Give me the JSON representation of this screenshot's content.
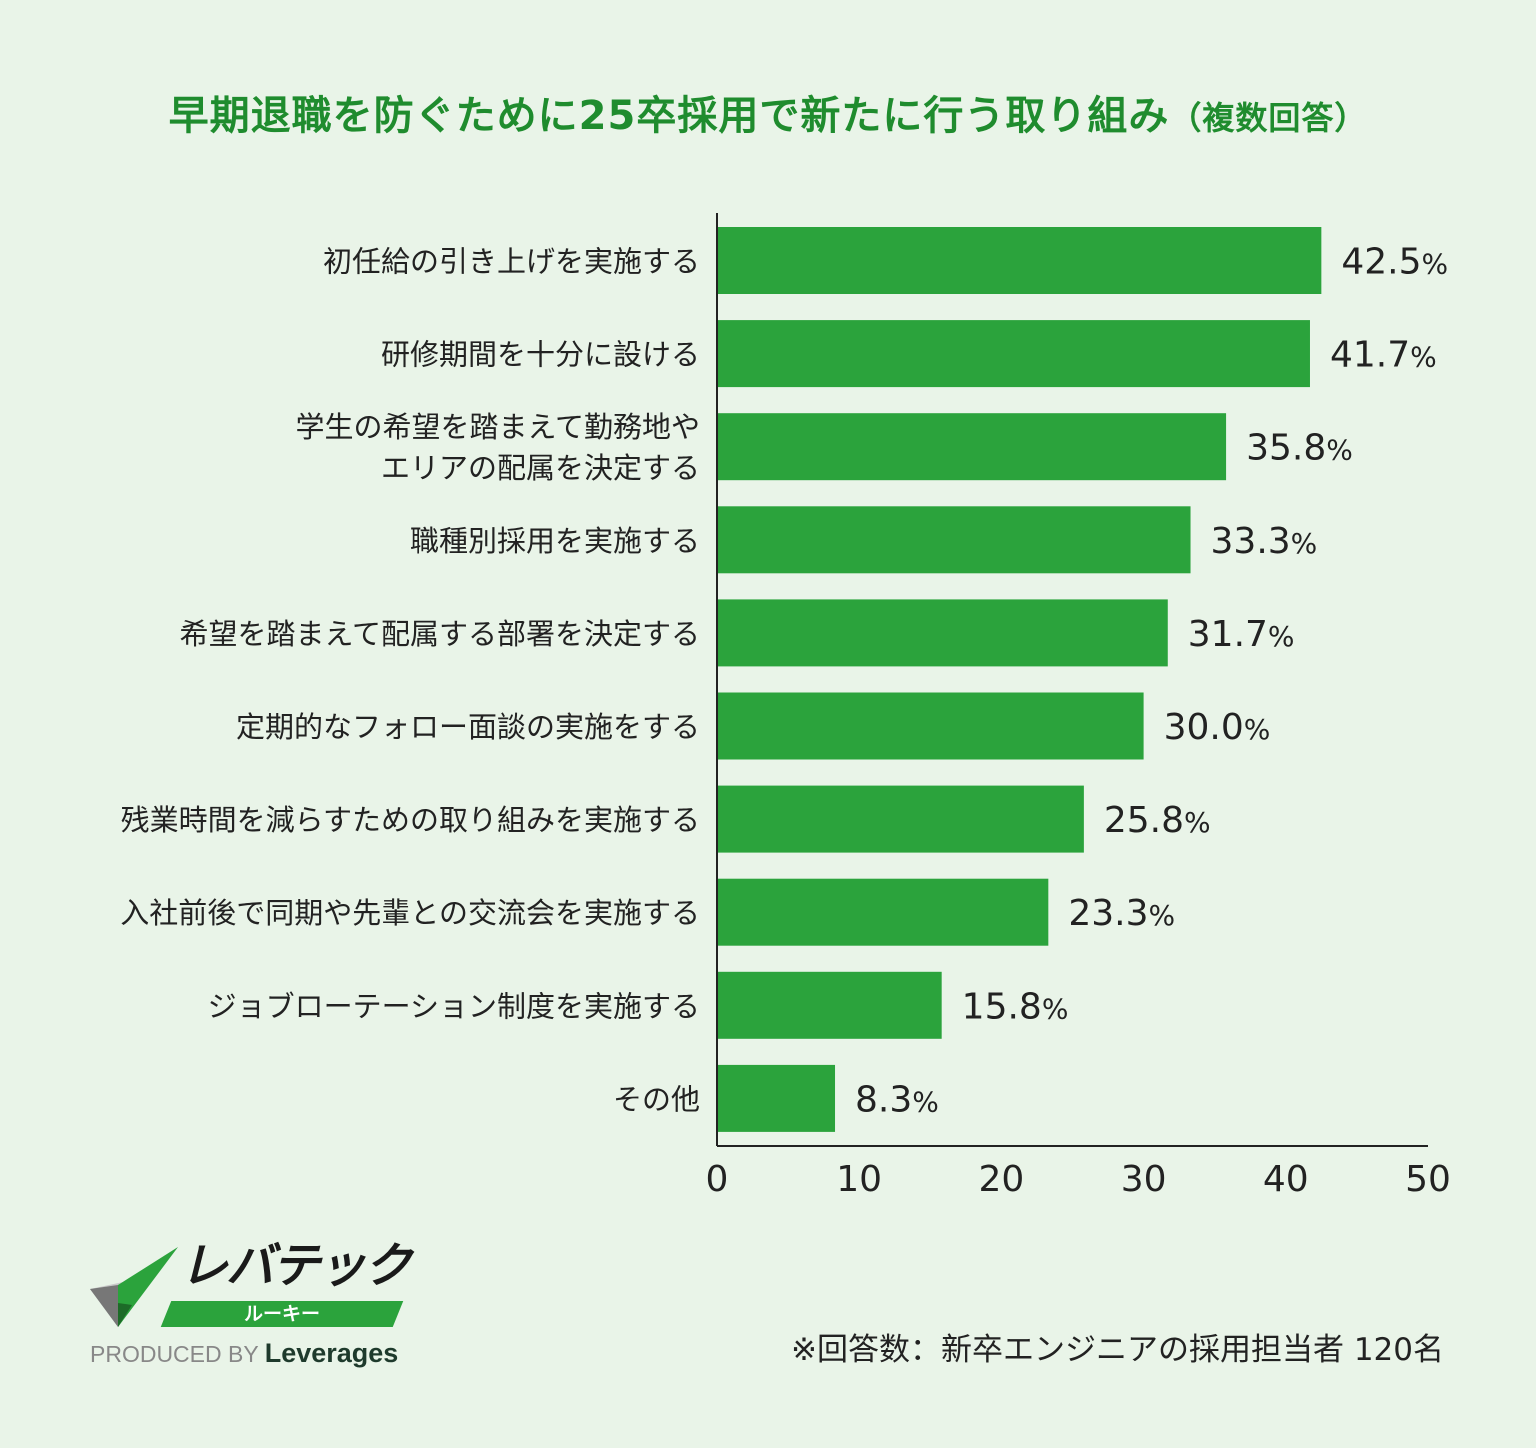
{
  "chart_data": {
    "type": "bar",
    "orientation": "horizontal",
    "title": "早期退職を防ぐために25卒採用で新たに行う取り組み",
    "subtitle": "（複数回答）",
    "categories": [
      "初任給の引き上げを実施する",
      "研修期間を十分に設ける",
      "学生の希望を踏まえて勤務地や\nエリアの配属を決定する",
      "職種別採用を実施する",
      "希望を踏まえて配属する部署を決定する",
      "定期的なフォロー面談の実施をする",
      "残業時間を減らすための取り組みを実施する",
      "入社前後で同期や先輩との交流会を実施する",
      "ジョブローテーション制度を実施する",
      "その他"
    ],
    "values": [
      42.5,
      41.7,
      35.8,
      33.3,
      31.7,
      30.0,
      25.8,
      23.3,
      15.8,
      8.3
    ],
    "value_suffix": "%",
    "xlim": [
      0,
      50
    ],
    "xticks": [
      0,
      10,
      20,
      30,
      40,
      50
    ],
    "xlabel": "",
    "ylabel": "",
    "grid": false,
    "bar_color": "#2ba33c",
    "title_color": "#1f8c2e"
  },
  "note": "※回答数：新卒エンジニアの採用担当者 120名",
  "logo": {
    "brand": "レバテック",
    "sub": "ルーキー",
    "produced_by": "PRODUCED BY",
    "company": "Leverages"
  }
}
